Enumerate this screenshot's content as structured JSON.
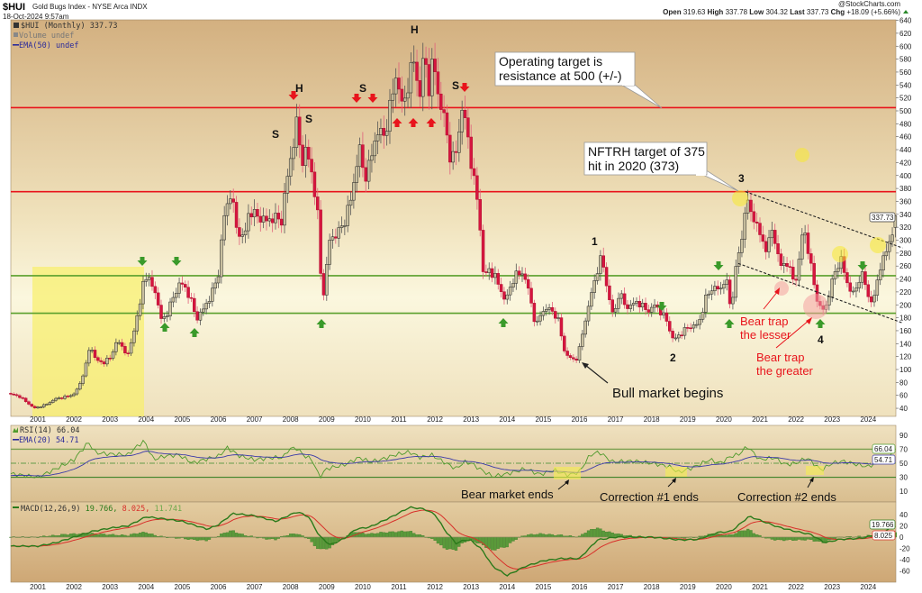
{
  "header": {
    "symbol": "$HUI",
    "description": "Gold Bugs Index - NYSE Arca INDX",
    "datetime": "18-Oct-2024 9:57am",
    "copyright": "@StockCharts.com",
    "open_label": "Open",
    "open": "319.63",
    "high_label": "High",
    "high": "337.78",
    "low_label": "Low",
    "low": "304.32",
    "last_label": "Last",
    "last": "337.73",
    "chg_label": "Chg",
    "chg": "+18.09 (+5.66%)"
  },
  "legend": {
    "price": "$HUI (Monthly) 337.73",
    "volume": "Volume undef",
    "ema": "EMA(50) undef",
    "rsi": "RSI(14) 66.04",
    "rsi_ema": "EMA(20) 54.71",
    "macd_name": "MACD(12,26,9)",
    "macd_v1": "19.766,",
    "macd_v2": "8.025,",
    "macd_v3": "11.741"
  },
  "badges": {
    "price": "337.73",
    "rsi": "66.04",
    "rsi_ema": "54.71",
    "macd": "19.766",
    "signal": "8.025"
  },
  "annotations": {
    "s1": "S",
    "h1": "H",
    "s2": "S",
    "s3": "S",
    "h2": "H",
    "s4": "S",
    "n1": "1",
    "n2": "2",
    "n3": "3",
    "n4": "4",
    "callout1_l1": "Operating target is",
    "callout1_l2": "resistance at 500 (+/-)",
    "callout2_l1": "NFTRH target of 375",
    "callout2_l2": "hit in 2020 (373)",
    "bull": "Bull market begins",
    "trap1_l1": "Bear trap",
    "trap1_l2": "the lesser",
    "trap2_l1": "Bear trap",
    "trap2_l2": "the greater",
    "rsi1": "Bear market ends",
    "rsi2": "Correction #1 ends",
    "rsi3": "Correction #2 ends"
  },
  "colors": {
    "up": "#c9c0a0",
    "down": "#d6153f",
    "resistance": "#e8141c",
    "support": "#5aa02c",
    "rsi": "#4f9a2c",
    "ema": "#3a3aa8",
    "macd": "#2a7a1a",
    "signal": "#d8302a",
    "hist": "#5a9a3a"
  },
  "chart_data": {
    "type": "candlestick",
    "title": "$HUI (Monthly)",
    "x_ticks": [
      "2001",
      "2002",
      "2003",
      "2004",
      "2005",
      "2006",
      "2007",
      "2008",
      "2009",
      "2010",
      "2011",
      "2012",
      "2013",
      "2014",
      "2015",
      "2016",
      "2017",
      "2018",
      "2019",
      "2020",
      "2021",
      "2022",
      "2023",
      "2024"
    ],
    "price_ylim": [
      40,
      640
    ],
    "price_ticks": [
      40,
      60,
      80,
      100,
      120,
      140,
      160,
      180,
      200,
      220,
      240,
      260,
      280,
      300,
      320,
      340,
      360,
      380,
      400,
      420,
      440,
      460,
      480,
      500,
      520,
      540,
      560,
      580,
      600,
      620,
      640
    ],
    "horizontal_lines": [
      {
        "value": 505,
        "color": "red"
      },
      {
        "value": 375,
        "color": "red"
      },
      {
        "value": 245,
        "color": "green"
      },
      {
        "value": 187,
        "color": "green"
      }
    ],
    "trendlines": [
      {
        "from": [
          2020.6,
          375
        ],
        "to": [
          2024.8,
          288
        ]
      },
      {
        "from": [
          2020.4,
          264
        ],
        "to": [
          2024.8,
          172
        ]
      }
    ],
    "last_candle": {
      "open": 319.63,
      "high": 337.78,
      "low": 304.32,
      "close": 337.73
    },
    "close_path": [
      [
        2000.25,
        62
      ],
      [
        2000.5,
        58
      ],
      [
        2000.9,
        40
      ],
      [
        2001.2,
        45
      ],
      [
        2001.5,
        55
      ],
      [
        2001.8,
        58
      ],
      [
        2002.0,
        62
      ],
      [
        2002.15,
        75
      ],
      [
        2002.35,
        110
      ],
      [
        2002.45,
        140
      ],
      [
        2002.6,
        115
      ],
      [
        2002.8,
        110
      ],
      [
        2003.0,
        118
      ],
      [
        2003.2,
        145
      ],
      [
        2003.4,
        130
      ],
      [
        2003.5,
        122
      ],
      [
        2003.7,
        170
      ],
      [
        2003.85,
        205
      ],
      [
        2003.95,
        250
      ],
      [
        2004.1,
        235
      ],
      [
        2004.25,
        222
      ],
      [
        2004.4,
        178
      ],
      [
        2004.55,
        182
      ],
      [
        2004.75,
        212
      ],
      [
        2004.95,
        235
      ],
      [
        2005.1,
        225
      ],
      [
        2005.25,
        205
      ],
      [
        2005.4,
        178
      ],
      [
        2005.6,
        195
      ],
      [
        2005.8,
        215
      ],
      [
        2006.0,
        248
      ],
      [
        2006.15,
        335
      ],
      [
        2006.35,
        375
      ],
      [
        2006.5,
        320
      ],
      [
        2006.7,
        300
      ],
      [
        2006.85,
        345
      ],
      [
        2007.0,
        340
      ],
      [
        2007.3,
        330
      ],
      [
        2007.6,
        335
      ],
      [
        2007.75,
        330
      ],
      [
        2007.9,
        395
      ],
      [
        2008.05,
        440
      ],
      [
        2008.18,
        485
      ],
      [
        2008.3,
        420
      ],
      [
        2008.45,
        440
      ],
      [
        2008.6,
        400
      ],
      [
        2008.75,
        340
      ],
      [
        2008.85,
        230
      ],
      [
        2008.95,
        215
      ],
      [
        2009.05,
        300
      ],
      [
        2009.3,
        310
      ],
      [
        2009.5,
        330
      ],
      [
        2009.7,
        370
      ],
      [
        2009.9,
        445
      ],
      [
        2010.05,
        395
      ],
      [
        2010.2,
        420
      ],
      [
        2010.4,
        470
      ],
      [
        2010.6,
        460
      ],
      [
        2010.8,
        520
      ],
      [
        2010.95,
        560
      ],
      [
        2011.1,
        500
      ],
      [
        2011.3,
        555
      ],
      [
        2011.45,
        585
      ],
      [
        2011.55,
        510
      ],
      [
        2011.7,
        590
      ],
      [
        2011.85,
        530
      ],
      [
        2011.95,
        585
      ],
      [
        2012.1,
        520
      ],
      [
        2012.25,
        490
      ],
      [
        2012.45,
        420
      ],
      [
        2012.6,
        440
      ],
      [
        2012.75,
        505
      ],
      [
        2012.9,
        465
      ],
      [
        2013.05,
        400
      ],
      [
        2013.2,
        355
      ],
      [
        2013.35,
        240
      ],
      [
        2013.5,
        255
      ],
      [
        2013.7,
        240
      ],
      [
        2013.95,
        205
      ],
      [
        2014.2,
        245
      ],
      [
        2014.45,
        250
      ],
      [
        2014.6,
        220
      ],
      [
        2014.8,
        165
      ],
      [
        2014.95,
        190
      ],
      [
        2015.15,
        195
      ],
      [
        2015.4,
        180
      ],
      [
        2015.6,
        125
      ],
      [
        2015.8,
        115
      ],
      [
        2015.95,
        118
      ],
      [
        2016.1,
        160
      ],
      [
        2016.3,
        210
      ],
      [
        2016.5,
        255
      ],
      [
        2016.62,
        275
      ],
      [
        2016.8,
        215
      ],
      [
        2016.95,
        180
      ],
      [
        2017.1,
        220
      ],
      [
        2017.3,
        195
      ],
      [
        2017.6,
        205
      ],
      [
        2017.9,
        190
      ],
      [
        2018.1,
        200
      ],
      [
        2018.4,
        178
      ],
      [
        2018.6,
        145
      ],
      [
        2018.8,
        155
      ],
      [
        2019.0,
        165
      ],
      [
        2019.3,
        170
      ],
      [
        2019.5,
        210
      ],
      [
        2019.7,
        228
      ],
      [
        2019.9,
        222
      ],
      [
        2020.05,
        245
      ],
      [
        2020.2,
        190
      ],
      [
        2020.35,
        265
      ],
      [
        2020.5,
        300
      ],
      [
        2020.6,
        360
      ],
      [
        2020.75,
        345
      ],
      [
        2020.9,
        325
      ],
      [
        2021.05,
        300
      ],
      [
        2021.2,
        285
      ],
      [
        2021.35,
        320
      ],
      [
        2021.55,
        260
      ],
      [
        2021.75,
        265
      ],
      [
        2021.95,
        235
      ],
      [
        2022.05,
        250
      ],
      [
        2022.2,
        325
      ],
      [
        2022.35,
        280
      ],
      [
        2022.55,
        215
      ],
      [
        2022.7,
        190
      ],
      [
        2022.85,
        200
      ],
      [
        2022.95,
        225
      ],
      [
        2023.1,
        255
      ],
      [
        2023.25,
        270
      ],
      [
        2023.4,
        235
      ],
      [
        2023.6,
        215
      ],
      [
        2023.75,
        240
      ],
      [
        2023.85,
        248
      ],
      [
        2024.0,
        212
      ],
      [
        2024.15,
        205
      ],
      [
        2024.3,
        255
      ],
      [
        2024.45,
        275
      ],
      [
        2024.6,
        300
      ],
      [
        2024.7,
        319.63
      ],
      [
        2024.75,
        337.73
      ]
    ],
    "rsi": {
      "ylim": [
        0,
        100
      ],
      "ticks": [
        10,
        30,
        50,
        70,
        90
      ],
      "levels": [
        70,
        50,
        30
      ],
      "path": [
        [
          2000.25,
          35
        ],
        [
          2001.0,
          30
        ],
        [
          2001.5,
          42
        ],
        [
          2002.0,
          55
        ],
        [
          2002.4,
          80
        ],
        [
          2002.6,
          65
        ],
        [
          2003.0,
          63
        ],
        [
          2003.5,
          62
        ],
        [
          2003.7,
          72
        ],
        [
          2003.95,
          82
        ],
        [
          2004.2,
          55
        ],
        [
          2004.5,
          60
        ],
        [
          2004.9,
          62
        ],
        [
          2005.3,
          50
        ],
        [
          2005.6,
          55
        ],
        [
          2006.0,
          60
        ],
        [
          2006.25,
          72
        ],
        [
          2006.6,
          60
        ],
        [
          2007.0,
          55
        ],
        [
          2007.5,
          58
        ],
        [
          2007.8,
          58
        ],
        [
          2007.95,
          70
        ],
        [
          2008.15,
          72
        ],
        [
          2008.4,
          60
        ],
        [
          2008.6,
          55
        ],
        [
          2008.8,
          30
        ],
        [
          2009.0,
          42
        ],
        [
          2009.5,
          48
        ],
        [
          2009.9,
          58
        ],
        [
          2010.2,
          52
        ],
        [
          2010.5,
          55
        ],
        [
          2010.9,
          62
        ],
        [
          2011.3,
          66
        ],
        [
          2011.6,
          58
        ],
        [
          2011.9,
          62
        ],
        [
          2012.3,
          50
        ],
        [
          2012.6,
          42
        ],
        [
          2012.8,
          52
        ],
        [
          2013.0,
          50
        ],
        [
          2013.3,
          40
        ],
        [
          2013.6,
          31
        ],
        [
          2014.0,
          35
        ],
        [
          2014.5,
          42
        ],
        [
          2014.9,
          34
        ],
        [
          2015.3,
          40
        ],
        [
          2015.7,
          33
        ],
        [
          2016.0,
          38
        ],
        [
          2016.3,
          62
        ],
        [
          2016.55,
          66
        ],
        [
          2016.9,
          52
        ],
        [
          2017.5,
          53
        ],
        [
          2018.0,
          50
        ],
        [
          2018.5,
          45
        ],
        [
          2018.75,
          37
        ],
        [
          2019.2,
          45
        ],
        [
          2019.6,
          55
        ],
        [
          2019.9,
          50
        ],
        [
          2020.2,
          60
        ],
        [
          2020.4,
          62
        ],
        [
          2020.65,
          74
        ],
        [
          2021.0,
          55
        ],
        [
          2021.4,
          58
        ],
        [
          2021.7,
          48
        ],
        [
          2022.0,
          50
        ],
        [
          2022.3,
          58
        ],
        [
          2022.7,
          40
        ],
        [
          2023.0,
          50
        ],
        [
          2023.3,
          53
        ],
        [
          2023.7,
          48
        ],
        [
          2024.0,
          45
        ],
        [
          2024.5,
          58
        ],
        [
          2024.75,
          66.04
        ]
      ],
      "ema_last": 54.71
    },
    "macd": {
      "ylim": [
        -80,
        60
      ],
      "ticks": [
        40,
        20,
        0,
        -20,
        -40,
        -60
      ],
      "path": [
        [
          2000.25,
          -16
        ],
        [
          2001.0,
          -16
        ],
        [
          2001.5,
          -10
        ],
        [
          2002.0,
          0
        ],
        [
          2002.5,
          10
        ],
        [
          2003.0,
          16
        ],
        [
          2003.5,
          20
        ],
        [
          2004.0,
          36
        ],
        [
          2004.3,
          34
        ],
        [
          2005.0,
          28
        ],
        [
          2005.7,
          14
        ],
        [
          2006.0,
          22
        ],
        [
          2006.4,
          42
        ],
        [
          2007.0,
          38
        ],
        [
          2007.6,
          28
        ],
        [
          2008.0,
          40
        ],
        [
          2008.2,
          45
        ],
        [
          2008.5,
          36
        ],
        [
          2008.8,
          2
        ],
        [
          2009.1,
          -14
        ],
        [
          2009.5,
          -2
        ],
        [
          2009.8,
          14
        ],
        [
          2010.2,
          18
        ],
        [
          2010.8,
          36
        ],
        [
          2011.3,
          53
        ],
        [
          2011.7,
          50
        ],
        [
          2012.0,
          40
        ],
        [
          2012.3,
          10
        ],
        [
          2012.6,
          -12
        ],
        [
          2012.8,
          -5
        ],
        [
          2013.0,
          -6
        ],
        [
          2013.3,
          -22
        ],
        [
          2013.6,
          -52
        ],
        [
          2014.0,
          -68
        ],
        [
          2014.5,
          -52
        ],
        [
          2015.0,
          -42
        ],
        [
          2015.5,
          -38
        ],
        [
          2016.0,
          -38
        ],
        [
          2016.5,
          -5
        ],
        [
          2017.0,
          0
        ],
        [
          2018.0,
          0
        ],
        [
          2018.8,
          -5
        ],
        [
          2019.3,
          -4
        ],
        [
          2019.8,
          8
        ],
        [
          2020.2,
          10
        ],
        [
          2020.7,
          37
        ],
        [
          2021.0,
          30
        ],
        [
          2021.5,
          18
        ],
        [
          2022.0,
          10
        ],
        [
          2022.4,
          5
        ],
        [
          2022.8,
          -10
        ],
        [
          2023.2,
          -4
        ],
        [
          2023.8,
          -2
        ],
        [
          2024.3,
          5
        ],
        [
          2024.75,
          19.766
        ]
      ],
      "last": {
        "macd": 19.766,
        "signal": 8.025,
        "histogram": 11.741
      }
    }
  }
}
